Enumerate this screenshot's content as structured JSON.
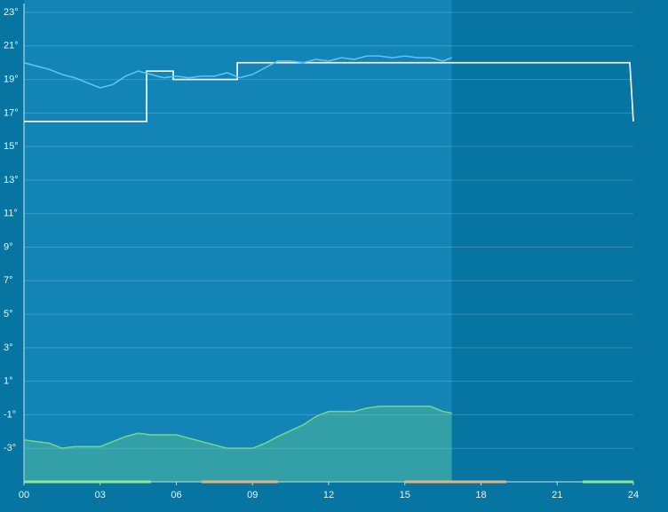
{
  "chart_data": {
    "type": "line",
    "xlim": [
      0,
      24
    ],
    "ylim": [
      -5,
      23
    ],
    "xticks": [
      {
        "value": 0,
        "label": "00"
      },
      {
        "value": 3,
        "label": "03"
      },
      {
        "value": 6,
        "label": "06"
      },
      {
        "value": 9,
        "label": "09"
      },
      12,
      15,
      18,
      21,
      24
    ],
    "yticks": [
      {
        "value": -3,
        "label": "-3°"
      },
      {
        "value": -1,
        "label": "-1°"
      },
      {
        "value": 1,
        "label": "1°"
      },
      {
        "value": 3,
        "label": "3°"
      },
      {
        "value": 5,
        "label": "5°"
      },
      {
        "value": 7,
        "label": "7°"
      },
      {
        "value": 9,
        "label": "9°"
      },
      {
        "value": 11,
        "label": "11°"
      },
      {
        "value": 13,
        "label": "13°"
      },
      {
        "value": 15,
        "label": "15°"
      },
      {
        "value": 17,
        "label": "17°"
      },
      {
        "value": 19,
        "label": "19°"
      },
      {
        "value": 21,
        "label": "21°"
      },
      {
        "value": 23,
        "label": "23°"
      }
    ],
    "grid": true,
    "series": [
      {
        "color": "#ffffff",
        "x": [
          0,
          4.83,
          4.83,
          5.88,
          5.88,
          8.4,
          8.4,
          23.86,
          24
        ],
        "values": [
          16.5,
          16.5,
          19.5,
          19.5,
          19,
          19,
          20,
          20,
          16.5
        ]
      },
      {
        "color": "#5cc2f2",
        "x": [
          0,
          0.5,
          1,
          1.5,
          2,
          2.5,
          3,
          3.5,
          4,
          4.5,
          5,
          5.5,
          6,
          6.5,
          7,
          7.5,
          8,
          8.5,
          9,
          9.5,
          10,
          10.5,
          11,
          11.5,
          12,
          12.5,
          13,
          13.5,
          14,
          14.5,
          15,
          15.5,
          16,
          16.5,
          16.85
        ],
        "values": [
          20.0,
          19.8,
          19.6,
          19.3,
          19.1,
          18.8,
          18.5,
          18.7,
          19.2,
          19.5,
          19.3,
          19.1,
          19.2,
          19.1,
          19.2,
          19.2,
          19.4,
          19.1,
          19.3,
          19.7,
          20.1,
          20.1,
          20.0,
          20.2,
          20.1,
          20.3,
          20.2,
          20.4,
          20.4,
          20.3,
          20.4,
          20.3,
          20.3,
          20.1,
          20.3
        ]
      },
      {
        "color": "#6fd48a",
        "area": true,
        "x": [
          0,
          1,
          1.5,
          2,
          3,
          3.5,
          4,
          4.5,
          5,
          6,
          7,
          8,
          9,
          9.5,
          10,
          11,
          11.5,
          12,
          13,
          13.5,
          14,
          15,
          16,
          16.5,
          16.85
        ],
        "values": [
          -2.5,
          -2.7,
          -3.0,
          -2.9,
          -2.9,
          -2.6,
          -2.3,
          -2.1,
          -2.2,
          -2.2,
          -2.6,
          -3.0,
          -3.0,
          -2.7,
          -2.3,
          -1.6,
          -1.1,
          -0.8,
          -0.8,
          -0.6,
          -0.5,
          -0.5,
          -0.5,
          -0.8,
          -0.9
        ]
      }
    ],
    "periods": [
      {
        "start": 0,
        "end": 5,
        "color": "#8ee89a"
      },
      {
        "start": 7,
        "end": 10,
        "color": "#e8b07a"
      },
      {
        "start": 15,
        "end": 19,
        "color": "#e8b07a"
      },
      {
        "start": 22,
        "end": 24,
        "color": "#8ee89a"
      }
    ]
  }
}
